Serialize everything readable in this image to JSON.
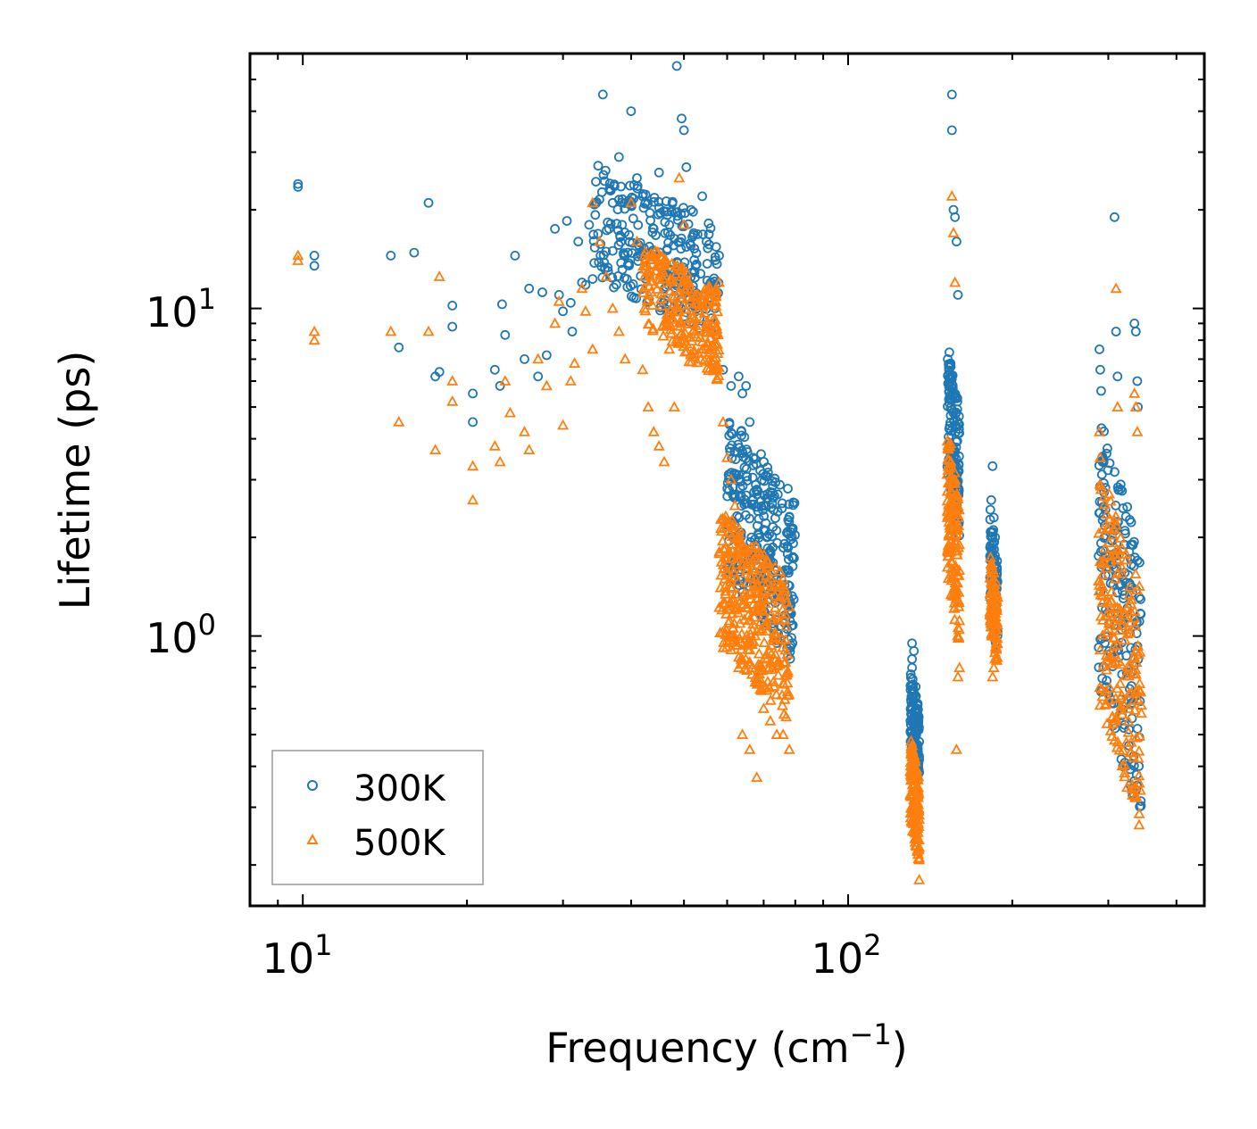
{
  "chart_data": {
    "type": "scatter",
    "xscale": "log",
    "yscale": "log",
    "xlabel": "Frequency (cm",
    "xlabel_sup": "−1",
    "xlabel_close": ")",
    "ylabel": "Lifetime (ps)",
    "xlim": [
      8.0,
      450
    ],
    "ylim": [
      0.15,
      60
    ],
    "x_ticks": [
      {
        "base": "10",
        "exp": "1",
        "value": 10
      },
      {
        "base": "10",
        "exp": "2",
        "value": 100
      }
    ],
    "y_ticks": [
      {
        "base": "10",
        "exp": "0",
        "value": 1
      },
      {
        "base": "10",
        "exp": "1",
        "value": 10
      }
    ],
    "legend_position": "lower-left",
    "series": [
      {
        "name": "300K",
        "marker": "circle",
        "color": "#1f77b4",
        "groups": [
          {
            "x": [
              9.8,
              9.8,
              10.5,
              10.5,
              14.5,
              15.0,
              16.0,
              17.5,
              17.0,
              17.8,
              18.8,
              18.8,
              20.5,
              20.5,
              22.5,
              23.0,
              23.2,
              23.5,
              24.5,
              25.5,
              26.0,
              27.0,
              27.5,
              28.0,
              29.0,
              29.5,
              30.0,
              30.5,
              31.0,
              31.2,
              32.0,
              32.5,
              33.0,
              34.0
            ],
            "y": [
              23.5,
              24.0,
              14.5,
              13.5,
              14.5,
              7.6,
              14.8,
              6.2,
              21.0,
              6.4,
              10.2,
              8.8,
              5.5,
              4.5,
              6.5,
              5.8,
              10.3,
              8.3,
              14.5,
              7.0,
              11.5,
              6.2,
              11.2,
              7.2,
              17.5,
              11.0,
              9.8,
              18.5,
              10.4,
              8.5,
              16.0,
              12.0,
              11.8,
              12.3
            ]
          },
          {
            "x": [
              33.5,
              35.5,
              36.5,
              37.0,
              38.0,
              38.5,
              39.0,
              40.0,
              41.0,
              42.0,
              44.0,
              45.0,
              46.0,
              47.0,
              48.5,
              49.5,
              50.0,
              50.5,
              51.5,
              52.5,
              54.0,
              55.0,
              56.0,
              57.0,
              58.0
            ],
            "y": [
              18.0,
              45.0,
              23.0,
              21.0,
              29.0,
              18.0,
              14.5,
              40.0,
              25.0,
              22.0,
              17.5,
              26.0,
              12.5,
              18.0,
              55.0,
              38.0,
              35.0,
              27.0,
              20.0,
              13.5,
              22.0,
              16.0,
              12.0,
              10.0,
              14.5
            ],
            "cloud": {
              "xmin": 34,
              "xmax": 58,
              "ymin": 8,
              "ymax": 28,
              "n": 260
            }
          },
          {
            "x": [
              59,
              61,
              63,
              64,
              65,
              66,
              67,
              68,
              69,
              70,
              71,
              72,
              74,
              76,
              78
            ],
            "y": [
              6.5,
              5.8,
              6.2,
              5.5,
              5.8,
              4.5,
              3.5,
              2.8,
              3.2,
              2.5,
              2.0,
              1.8,
              1.5,
              1.3,
              1.2
            ],
            "cloud": {
              "xmin": 60,
              "xmax": 80,
              "ymin": 0.8,
              "ymax": 5,
              "n": 320
            }
          },
          {
            "x": [
              131,
              131,
              131,
              132,
              133,
              134
            ],
            "y": [
              0.8,
              0.95,
              0.85,
              0.9,
              0.7,
              0.6
            ],
            "cloud": {
              "xmin": 130,
              "xmax": 135,
              "ymin": 0.35,
              "ymax": 0.8,
              "n": 140
            }
          },
          {
            "x": [
              155,
              155,
              156,
              157,
              158,
              159
            ],
            "y": [
              45,
              35,
              20,
              19,
              16,
              11
            ],
            "cloud": {
              "xmin": 152,
              "xmax": 160,
              "ymin": 2,
              "ymax": 8,
              "n": 150
            }
          },
          {
            "x": [
              184,
              183,
              185,
              186,
              184
            ],
            "y": [
              3.3,
              2.6,
              2.3,
              2.0,
              1.8
            ],
            "cloud": {
              "xmin": 182,
              "xmax": 188,
              "ymin": 0.85,
              "ymax": 2.5,
              "n": 90
            }
          },
          {
            "x": [
              289,
              290,
              291,
              308,
              310,
              312,
              335,
              337,
              339,
              340
            ],
            "y": [
              7.5,
              6.5,
              5.6,
              19.0,
              8.5,
              6.2,
              9.0,
              8.5,
              6.0,
              5.0
            ],
            "cloud": {
              "xmin": 288,
              "xmax": 345,
              "ymin": 0.25,
              "ymax": 5,
              "n": 200
            }
          }
        ]
      },
      {
        "name": "500K",
        "marker": "triangle",
        "color": "#ff7f0e",
        "groups": [
          {
            "x": [
              9.8,
              9.8,
              10.5,
              10.5,
              14.5,
              15.0,
              17.0,
              17.5,
              17.8,
              18.8,
              18.8,
              20.5,
              20.5,
              22.5,
              23.0,
              23.5,
              24.0,
              25.5,
              26.0,
              27.0,
              28.0,
              29.0,
              29.5,
              30.0,
              31.0,
              31.5,
              32.5,
              33.0,
              34.0
            ],
            "y": [
              14.5,
              14.0,
              8.5,
              8.0,
              8.5,
              4.5,
              8.5,
              3.7,
              12.5,
              6.0,
              5.2,
              3.3,
              2.6,
              3.8,
              3.4,
              6.0,
              4.8,
              4.2,
              3.7,
              7.0,
              5.8,
              9.0,
              10.5,
              4.4,
              6.0,
              6.8,
              11.5,
              9.8,
              7.5
            ]
          },
          {
            "x": [
              34,
              35,
              36,
              37,
              38,
              39,
              40,
              41,
              42,
              43,
              44,
              45,
              46,
              47,
              48,
              49,
              50,
              51,
              52,
              53,
              54,
              55,
              56,
              57,
              58
            ],
            "y": [
              21.0,
              16.0,
              12.5,
              10.0,
              8.5,
              7.0,
              21.0,
              16.0,
              6.5,
              5.0,
              4.2,
              3.8,
              3.4,
              7.5,
              5.0,
              25.0,
              18.0,
              12.0,
              9.0,
              11.0,
              7.5,
              9.0,
              8.5,
              7.8,
              12.0
            ],
            "cloud": {
              "xmin": 42,
              "xmax": 58,
              "ymin": 6,
              "ymax": 16,
              "n": 230
            }
          },
          {
            "x": [
              59,
              60,
              61,
              62,
              63,
              64,
              66,
              68,
              70,
              72,
              74,
              76,
              78
            ],
            "y": [
              4.5,
              3.5,
              3.0,
              2.5,
              0.8,
              0.5,
              0.45,
              0.37,
              0.6,
              0.55,
              0.5,
              0.5,
              0.45
            ],
            "cloud": {
              "xmin": 58,
              "xmax": 78,
              "ymin": 0.55,
              "ymax": 2.5,
              "n": 330
            }
          },
          {
            "x": [
              131,
              132,
              133,
              134,
              135,
              135
            ],
            "y": [
              0.45,
              0.3,
              0.25,
              0.22,
              0.21,
              0.18
            ],
            "cloud": {
              "xmin": 130,
              "xmax": 135,
              "ymin": 0.2,
              "ymax": 0.5,
              "n": 140
            }
          },
          {
            "x": [
              155,
              156,
              157,
              158,
              159,
              160
            ],
            "y": [
              22.0,
              17.0,
              12.0,
              0.45,
              0.75,
              0.8
            ],
            "cloud": {
              "xmin": 152,
              "xmax": 160,
              "ymin": 0.9,
              "ymax": 4.5,
              "n": 150
            }
          },
          {
            "x": [
              184,
              185,
              186
            ],
            "y": [
              0.75,
              0.8,
              0.85
            ],
            "cloud": {
              "xmin": 182,
              "xmax": 188,
              "ymin": 0.8,
              "ymax": 1.8,
              "n": 90
            }
          },
          {
            "x": [
              289,
              290,
              291,
              310,
              312,
              335,
              337,
              339
            ],
            "y": [
              4.2,
              3.5,
              2.8,
              11.5,
              5.0,
              5.5,
              5.0,
              4.2
            ],
            "cloud": {
              "xmin": 288,
              "xmax": 345,
              "ymin": 0.25,
              "ymax": 3.5,
              "n": 200
            }
          }
        ]
      }
    ]
  }
}
